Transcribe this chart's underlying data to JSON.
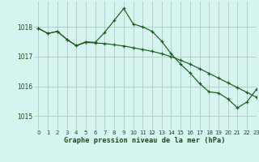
{
  "title": "Graphe pression niveau de la mer (hPa)",
  "background_color": "#d6f5f0",
  "grid_color": "#b8ccc8",
  "line_color": "#1a5c1a",
  "xlim": [
    -0.5,
    23
  ],
  "ylim": [
    1014.55,
    1018.85
  ],
  "yticks": [
    1015,
    1016,
    1017,
    1018
  ],
  "xticks": [
    0,
    1,
    2,
    3,
    4,
    5,
    6,
    7,
    8,
    9,
    10,
    11,
    12,
    13,
    14,
    15,
    16,
    17,
    18,
    19,
    20,
    21,
    22,
    23
  ],
  "series1": [
    [
      0,
      1017.95
    ],
    [
      1,
      1017.78
    ],
    [
      2,
      1017.85
    ],
    [
      3,
      1017.58
    ],
    [
      4,
      1017.37
    ],
    [
      5,
      1017.5
    ],
    [
      6,
      1017.48
    ],
    [
      7,
      1017.82
    ],
    [
      8,
      1018.22
    ],
    [
      9,
      1018.62
    ],
    [
      10,
      1018.1
    ],
    [
      11,
      1018.0
    ],
    [
      12,
      1017.85
    ],
    [
      13,
      1017.52
    ],
    [
      14,
      1017.1
    ],
    [
      15,
      1016.75
    ],
    [
      16,
      1016.45
    ],
    [
      17,
      1016.1
    ],
    [
      18,
      1015.82
    ],
    [
      19,
      1015.78
    ],
    [
      20,
      1015.58
    ],
    [
      21,
      1015.28
    ],
    [
      22,
      1015.48
    ],
    [
      23,
      1015.9
    ]
  ],
  "series2": [
    [
      0,
      1017.95
    ],
    [
      1,
      1017.78
    ],
    [
      2,
      1017.85
    ],
    [
      3,
      1017.58
    ],
    [
      4,
      1017.37
    ],
    [
      5,
      1017.48
    ],
    [
      6,
      1017.46
    ],
    [
      7,
      1017.44
    ],
    [
      8,
      1017.4
    ],
    [
      9,
      1017.36
    ],
    [
      10,
      1017.3
    ],
    [
      11,
      1017.24
    ],
    [
      12,
      1017.18
    ],
    [
      13,
      1017.1
    ],
    [
      14,
      1017.0
    ],
    [
      15,
      1016.88
    ],
    [
      16,
      1016.75
    ],
    [
      17,
      1016.6
    ],
    [
      18,
      1016.44
    ],
    [
      19,
      1016.28
    ],
    [
      20,
      1016.12
    ],
    [
      21,
      1015.96
    ],
    [
      22,
      1015.8
    ],
    [
      23,
      1015.64
    ]
  ]
}
